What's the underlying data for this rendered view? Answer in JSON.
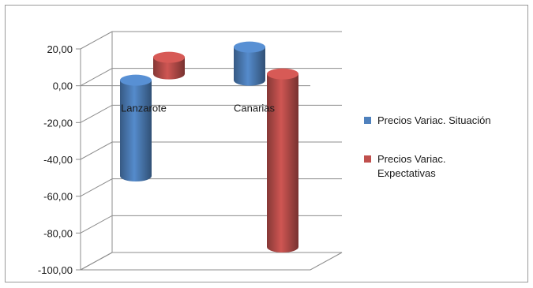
{
  "chart_data": {
    "type": "bar",
    "categories": [
      "Lanzarote",
      "Canarias"
    ],
    "series": [
      {
        "name": "Precios Variac. Situación",
        "values": [
          -52,
          18
        ],
        "color": "#4f81bd"
      },
      {
        "name": "Precios Variac. Expectativas",
        "values": [
          9,
          -94
        ],
        "color": "#c0504d"
      }
    ],
    "ylim": [
      -100,
      20
    ],
    "yticks": [
      "20,00",
      "0,00",
      "-20,00",
      "-40,00",
      "-60,00",
      "-80,00",
      "-100,00"
    ],
    "grid": true,
    "legend": "right",
    "three_d": true
  },
  "legend_lines": [
    [
      "Precios Variac. Situación"
    ],
    [
      "Precios Variac.",
      "Expectativas"
    ]
  ]
}
